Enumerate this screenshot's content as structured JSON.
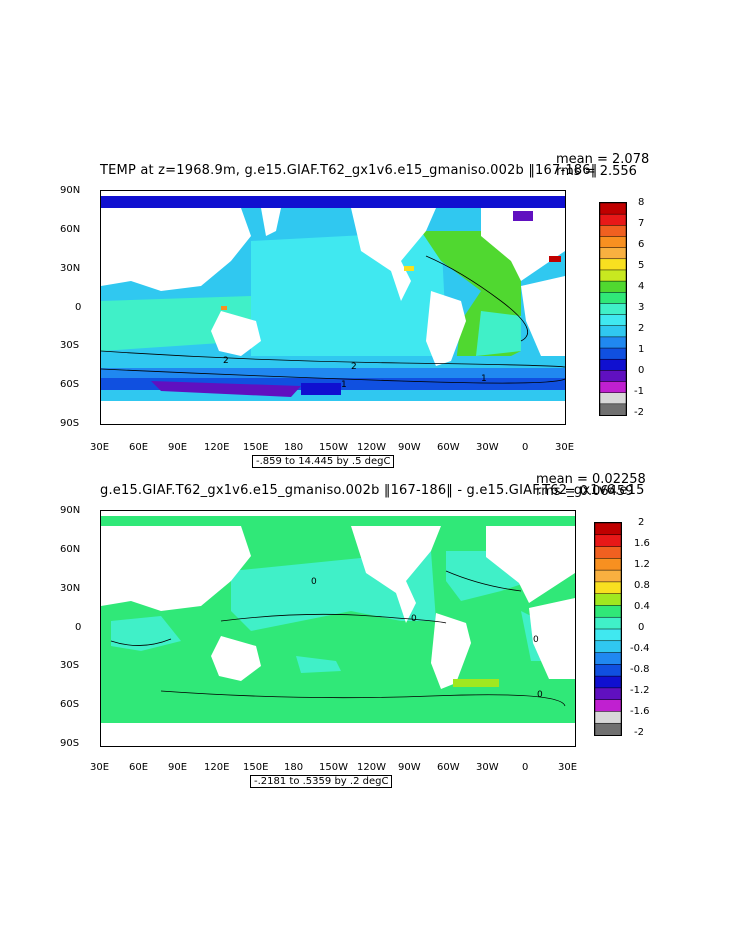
{
  "panels": [
    {
      "title": "TEMP at z=1968.9m, g.e15.GIAF.T62_gx1v6.e15_gmaniso.002b ‖167-186‖",
      "mean": "mean = 2.078",
      "rms": "rms = 2.556",
      "range": "-.859 to 14.445 by .5 degC",
      "colorbar_labels": [
        "8",
        "7",
        "6",
        "5",
        "4",
        "3",
        "2",
        "1",
        "0",
        "-1",
        "-2"
      ],
      "colors": [
        "#c00000",
        "#e81818",
        "#f06020",
        "#f89020",
        "#f8b040",
        "#f8e020",
        "#c8e820",
        "#50d830",
        "#30e878",
        "#40f0c8",
        "#40e8f0",
        "#30c8f0",
        "#2088f0",
        "#1050e0",
        "#1010d0",
        "#6010c0",
        "#c020d0",
        "#d8d8d8",
        "#707070"
      ]
    },
    {
      "title": "g.e15.GIAF.T62_gx1v6.e15_gmaniso.002b ‖167-186‖ - g.e15.GIAF.T62_gx1v6.e15",
      "mean": "mean = 0.02258",
      "rms": "rms = 0.06459",
      "range": "-.2181 to .5359 by .2 degC",
      "colorbar_labels": [
        "2",
        "1.6",
        "1.2",
        "0.8",
        "0.4",
        "0",
        "-0.4",
        "-0.8",
        "-1.2",
        "-1.6",
        "-2"
      ],
      "colors": [
        "#c00000",
        "#e81818",
        "#f06020",
        "#f89020",
        "#f8b040",
        "#f8e020",
        "#a0e820",
        "#30e878",
        "#40f0c8",
        "#40e8f0",
        "#30c8f0",
        "#2088f0",
        "#1050e0",
        "#1010d0",
        "#6010c0",
        "#c020d0",
        "#d8d8d8",
        "#707070"
      ]
    }
  ],
  "axes": {
    "lat_labels": [
      "90N",
      "60N",
      "30N",
      "0",
      "30S",
      "60S",
      "90S"
    ],
    "lon_labels": [
      "30E",
      "60E",
      "90E",
      "120E",
      "150E",
      "180",
      "150W",
      "120W",
      "90W",
      "60W",
      "30W",
      "0",
      "30E"
    ]
  },
  "contour_labels": {
    "panel1": [
      "2",
      "2",
      "1",
      "1"
    ],
    "panel2": [
      "0",
      "0",
      "0",
      "0"
    ]
  },
  "colors": {
    "land": "#ffffff",
    "contour": "#000000"
  }
}
